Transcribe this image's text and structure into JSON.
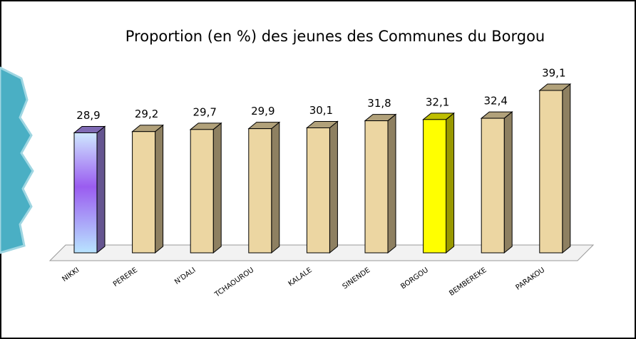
{
  "chart_data": {
    "type": "bar3d",
    "title": "Proportion (en %) des jeunes des Communes du Borgou",
    "categories": [
      "NIKKI",
      "PERERE",
      "N'DALI",
      "TCHAOUROU",
      "KALALE",
      "SINENDE",
      "BORGOU",
      "BEMBEREKE",
      "PARAKOU"
    ],
    "values": [
      28.9,
      29.2,
      29.7,
      29.9,
      30.1,
      31.8,
      32.1,
      32.4,
      39.1
    ],
    "value_labels": [
      "28,9",
      "29,2",
      "29,7",
      "29,9",
      "30,1",
      "31,8",
      "32,1",
      "32,4",
      "39,1"
    ],
    "colors": [
      "#a98df0",
      "#ecd6a2",
      "#ecd6a2",
      "#ecd6a2",
      "#ecd6a2",
      "#ecd6a2",
      "#ffff00",
      "#ecd6a2",
      "#ecd6a2"
    ]
  }
}
